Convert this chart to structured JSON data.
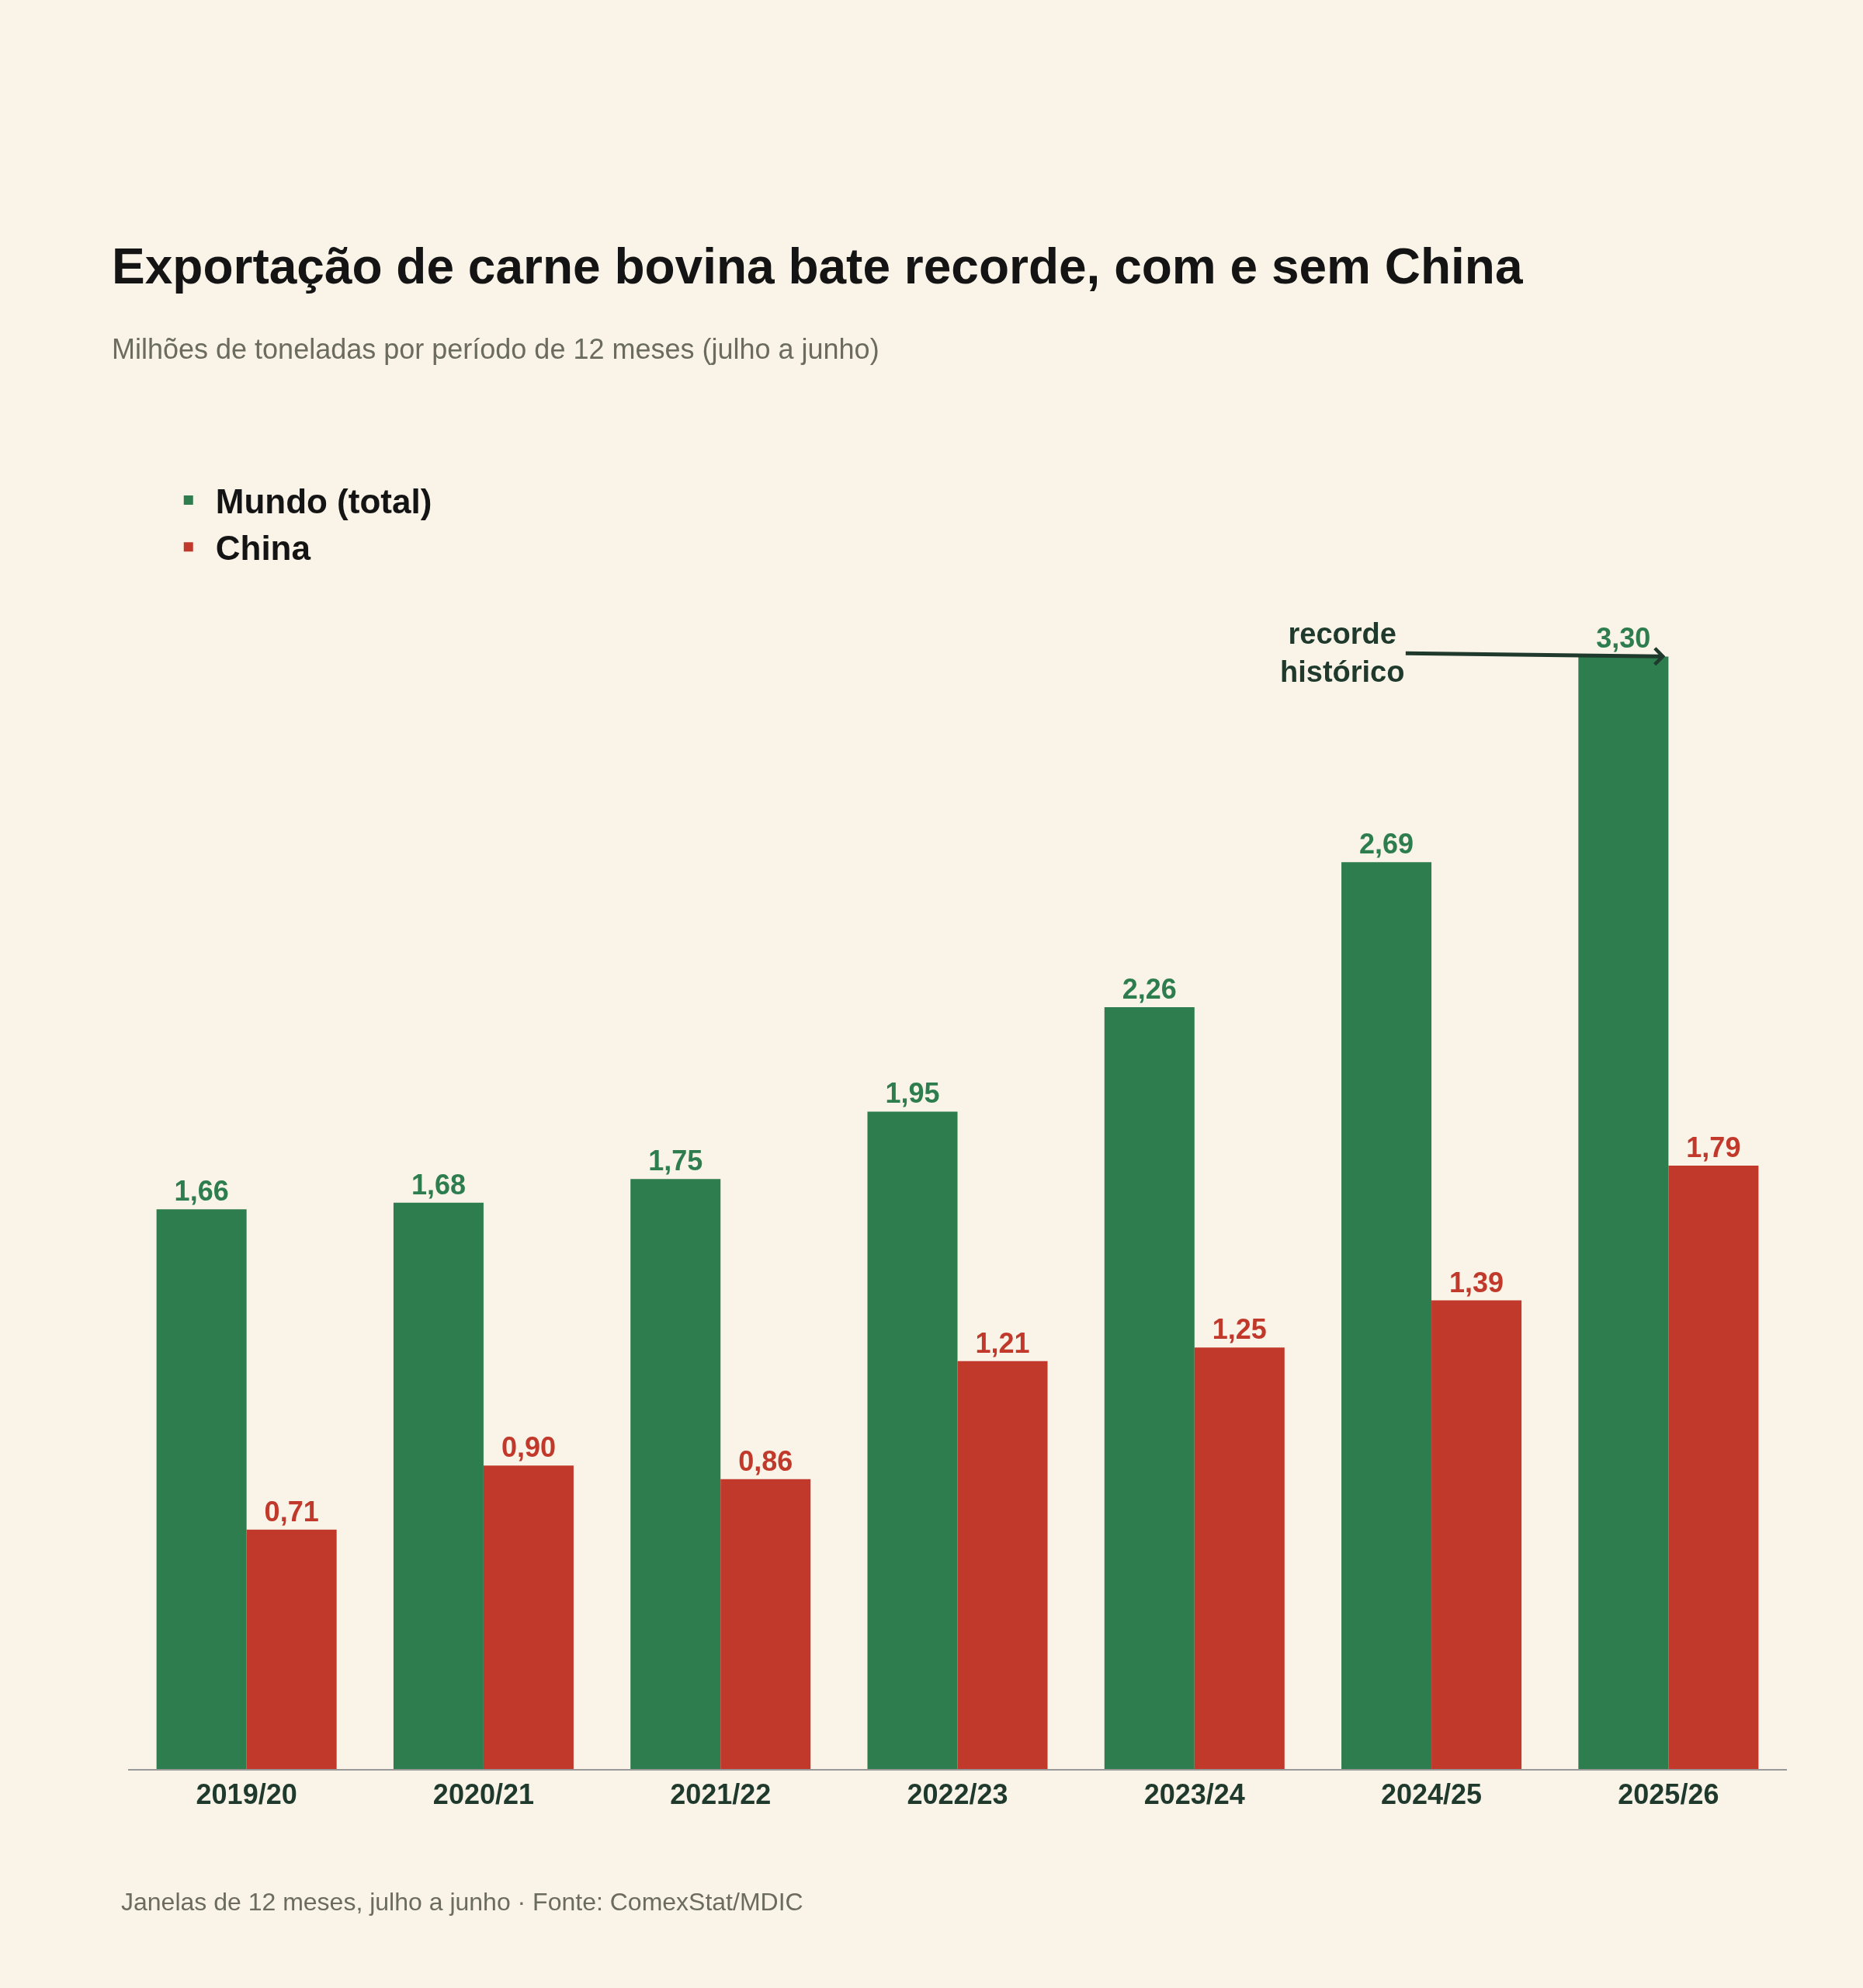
{
  "chart_data": {
    "type": "bar",
    "title": "Exportação de carne bovina bate recorde, com e sem China",
    "subtitle": "Milhões de toneladas por período de 12 meses (julho a junho)",
    "categories": [
      "2019/20",
      "2020/21",
      "2021/22",
      "2022/23",
      "2023/24",
      "2024/25",
      "2025/26"
    ],
    "series": [
      {
        "name": "Mundo (total)",
        "color": "#2e7d4f",
        "values": [
          1.66,
          1.68,
          1.75,
          1.95,
          2.26,
          2.69,
          3.3
        ],
        "value_labels": [
          "1,66",
          "1,68",
          "1,75",
          "1,95",
          "2,26",
          "2,69",
          "3,30"
        ]
      },
      {
        "name": "China",
        "color": "#c0392b",
        "values": [
          0.71,
          0.9,
          0.86,
          1.21,
          1.25,
          1.39,
          1.79
        ],
        "value_labels": [
          "0,71",
          "0,90",
          "0,86",
          "1,21",
          "1,25",
          "1,39",
          "1,79"
        ]
      }
    ],
    "legend": "top left",
    "grid": false,
    "annotations": [
      {
        "text": "recorde\nhistórico",
        "x": "2025/26",
        "y": 3.3
      },
      "Janelas de 12 meses, julho a junho · Fonte: ComexStat/MDIC"
    ]
  }
}
